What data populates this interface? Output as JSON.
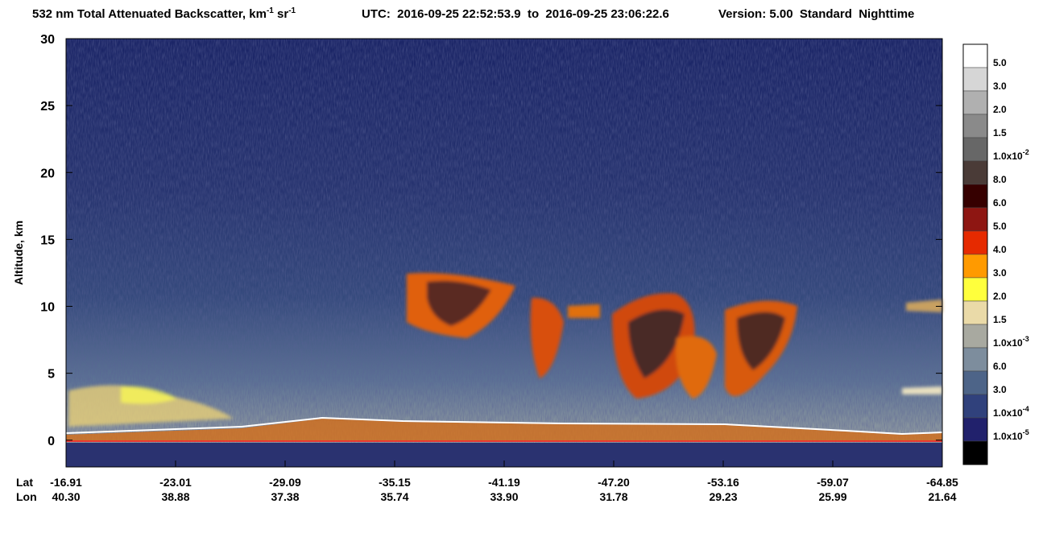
{
  "chart_data": {
    "type": "heatmap-image",
    "title_parts": [
      "532 nm Total Attenuated Backscatter, km",
      "-1",
      " sr",
      "-1"
    ],
    "utc": "UTC:  2016-09-25 22:52:53.9  to  2016-09-25 23:06:22.6",
    "version": "Version: 5.00  Standard  Nighttime",
    "y_label": "Altitude, km",
    "ylim": [
      -2,
      30
    ],
    "yticks": [
      0,
      5,
      10,
      15,
      20,
      25,
      30
    ],
    "x_rows": [
      {
        "name": "Lat",
        "labels": [
          "-16.91",
          "-23.01",
          "-29.09",
          "-35.15",
          "-41.19",
          "-47.20",
          "-53.16",
          "-59.07",
          "-64.85"
        ]
      },
      {
        "name": "Lon",
        "labels": [
          "40.30",
          "38.88",
          "37.38",
          "35.74",
          "33.90",
          "31.78",
          "29.23",
          "25.99",
          "21.64"
        ]
      }
    ],
    "colorbar": {
      "colors": [
        "#ffffff",
        "#d6d6d6",
        "#b0b0b0",
        "#8a8a8a",
        "#676767",
        "#4a3b37",
        "#360000",
        "#8e1612",
        "#e62a00",
        "#ff9a00",
        "#ffff3c",
        "#eadaa8",
        "#a8a9a0",
        "#7d8d9d",
        "#4d6488",
        "#30417c",
        "#21216c",
        "#000000"
      ],
      "labels": [
        {
          "text": "5.0"
        },
        {
          "text": "3.0"
        },
        {
          "text": "2.0"
        },
        {
          "text": "1.5"
        },
        {
          "text": "1.0x10",
          "exp": "-2"
        },
        {
          "text": "8.0"
        },
        {
          "text": "6.0"
        },
        {
          "text": "5.0"
        },
        {
          "text": "4.0"
        },
        {
          "text": "3.0"
        },
        {
          "text": "2.0"
        },
        {
          "text": "1.5"
        },
        {
          "text": "1.0x10",
          "exp": "-3"
        },
        {
          "text": "6.0"
        },
        {
          "text": "3.0"
        },
        {
          "text": "1.0x10",
          "exp": "-4"
        },
        {
          "text": "1.0x10",
          "exp": "-5"
        }
      ]
    }
  }
}
